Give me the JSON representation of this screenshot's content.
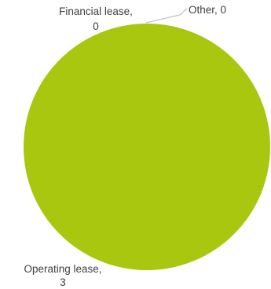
{
  "chart_data": {
    "type": "pie",
    "title": "",
    "slices": [
      {
        "label": "Financial lease",
        "value": 0,
        "color": "#A8C70E"
      },
      {
        "label": "Other",
        "value": 0,
        "color": "#A8C70E"
      },
      {
        "label": "Operating lease",
        "value": 3,
        "color": "#A8C70E"
      }
    ],
    "data_labels": [
      {
        "name_text": "Financial lease,",
        "value_text": "0"
      },
      {
        "name_text": "Other, 0",
        "value_text": ""
      },
      {
        "name_text": "Operating lease,",
        "value_text": "3"
      }
    ],
    "leader_line_color": "#BFBFBF",
    "label_color": "#404040"
  }
}
